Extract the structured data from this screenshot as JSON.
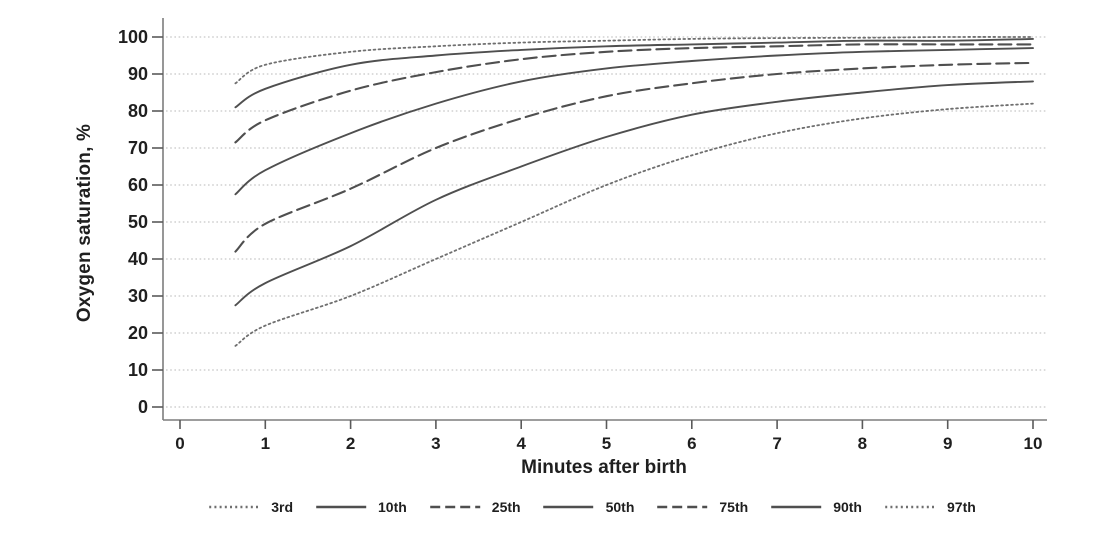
{
  "figure": {
    "kind": "static-chart-image"
  },
  "colors": {
    "background": "#ffffff",
    "curve_solid": "#4f4f4f",
    "curve_dashed": "#4f4f4f",
    "curve_dotted": "#6f6f6f",
    "gridline": "#c6c6c6",
    "axis_line": "#7d7d7d",
    "tick": "#5a5a5a",
    "text": "#1f1f1f"
  },
  "chart_data": {
    "type": "line",
    "title": "",
    "xlabel": "Minutes after birth",
    "ylabel": "Oxygen saturation, %",
    "xlim": [
      0,
      10
    ],
    "ylim": [
      0,
      100
    ],
    "x_ticks": [
      0,
      1,
      2,
      3,
      4,
      5,
      6,
      7,
      8,
      9,
      10
    ],
    "y_ticks": [
      0,
      10,
      20,
      30,
      40,
      50,
      60,
      70,
      80,
      90,
      100
    ],
    "grid": "horizontal-dotted",
    "legend_position": "bottom",
    "x": [
      0.65,
      1,
      2,
      3,
      4,
      5,
      6,
      7,
      8,
      9,
      10
    ],
    "series": [
      {
        "name": "3rd",
        "style": "dotted",
        "values": [
          16.5,
          22,
          30,
          40,
          50,
          60,
          68,
          74,
          78,
          80.5,
          82
        ]
      },
      {
        "name": "10th",
        "style": "solid",
        "values": [
          27.5,
          33.5,
          43.5,
          56,
          65,
          73,
          79,
          82.5,
          85,
          87,
          88
        ]
      },
      {
        "name": "25th",
        "style": "dashed",
        "values": [
          42,
          49.5,
          59,
          70,
          78,
          84,
          87.5,
          90,
          91.5,
          92.5,
          93
        ]
      },
      {
        "name": "50th",
        "style": "solid",
        "values": [
          57.5,
          64,
          74,
          82,
          88,
          91.5,
          93.5,
          95,
          96,
          96.5,
          97
        ]
      },
      {
        "name": "75th",
        "style": "dashed",
        "values": [
          71.5,
          77.5,
          85.5,
          90.5,
          94,
          96,
          97,
          97.5,
          98,
          98,
          98
        ]
      },
      {
        "name": "90th",
        "style": "solid",
        "values": [
          81,
          86,
          92.5,
          95,
          96.5,
          97.5,
          98,
          98.5,
          99,
          99,
          99.5
        ]
      },
      {
        "name": "97th",
        "style": "dotted",
        "values": [
          87.5,
          92.5,
          96,
          97.5,
          98.5,
          99,
          99.5,
          99.7,
          99.8,
          100,
          100
        ]
      }
    ]
  }
}
